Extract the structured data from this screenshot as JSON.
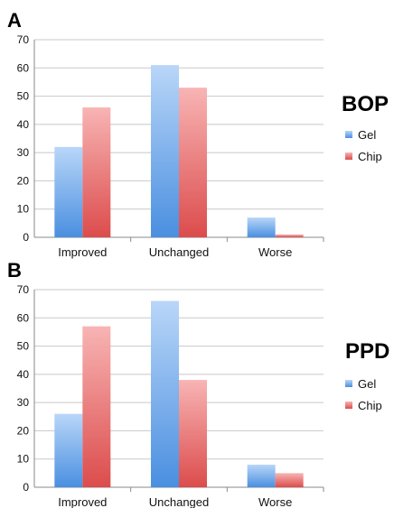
{
  "colors": {
    "gel": "#5a9be6",
    "chip": "#e05a5a",
    "axis": "#8a8a8a",
    "grid": "#c8c8c8"
  },
  "chart_data": [
    {
      "type": "bar",
      "panel": "A",
      "title": "BOP",
      "categories": [
        "Improved",
        "Unchanged",
        "Worse"
      ],
      "series": [
        {
          "name": "Gel",
          "values": [
            32,
            61,
            7
          ]
        },
        {
          "name": "Chip",
          "values": [
            46,
            53,
            1
          ]
        }
      ],
      "ylim": [
        0,
        70
      ],
      "yticks": [
        "0",
        "10",
        "20",
        "30",
        "40",
        "50",
        "60",
        "70"
      ],
      "grid": true,
      "legend": "right"
    },
    {
      "type": "bar",
      "panel": "B",
      "title": "PPD",
      "categories": [
        "Improved",
        "Unchanged",
        "Worse"
      ],
      "series": [
        {
          "name": "Gel",
          "values": [
            26,
            66,
            8
          ]
        },
        {
          "name": "Chip",
          "values": [
            57,
            38,
            5
          ]
        }
      ],
      "ylim": [
        0,
        70
      ],
      "yticks": [
        "0",
        "10",
        "20",
        "30",
        "40",
        "50",
        "60",
        "70"
      ],
      "grid": true,
      "legend": "right"
    }
  ]
}
